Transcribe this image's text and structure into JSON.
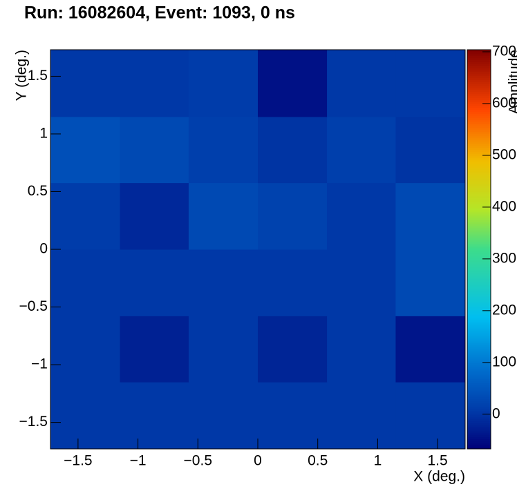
{
  "chart_data": {
    "type": "heatmap",
    "title": "Run: 16082604, Event: 1093, 0 ns",
    "x_label": "X (deg.)",
    "y_label": "Y (deg.)",
    "z_label": "Amplitude",
    "x_bins": [
      -1.73,
      -1.15,
      -0.577,
      0,
      0.577,
      1.15,
      1.73
    ],
    "y_bins": [
      -1.73,
      -1.15,
      -0.577,
      0,
      0.577,
      1.15,
      1.73
    ],
    "z": [
      [
        5,
        5,
        5,
        5,
        5,
        5
      ],
      [
        5,
        -25,
        5,
        -20,
        5,
        -40
      ],
      [
        5,
        5,
        5,
        5,
        5,
        30
      ],
      [
        10,
        -15,
        30,
        20,
        5,
        30
      ],
      [
        40,
        30,
        15,
        0,
        15,
        0
      ],
      [
        5,
        5,
        10,
        -45,
        5,
        5
      ]
    ],
    "xlim": [
      -1.73,
      1.73
    ],
    "ylim": [
      -1.73,
      1.73
    ],
    "zlim": [
      -67,
      704
    ],
    "xticks": [
      {
        "value": -1.5,
        "label": "−1.5"
      },
      {
        "value": -1,
        "label": "−1"
      },
      {
        "value": -0.5,
        "label": "−0.5"
      },
      0,
      0.5,
      1,
      1.5
    ],
    "yticks": [
      {
        "value": -1.5,
        "label": "−1.5"
      },
      {
        "value": -1,
        "label": "−1"
      },
      {
        "value": -0.5,
        "label": "−0.5"
      },
      0,
      0.5,
      1,
      1.5
    ],
    "zticks": [
      0,
      100,
      200,
      300,
      400,
      500,
      600,
      700
    ]
  }
}
